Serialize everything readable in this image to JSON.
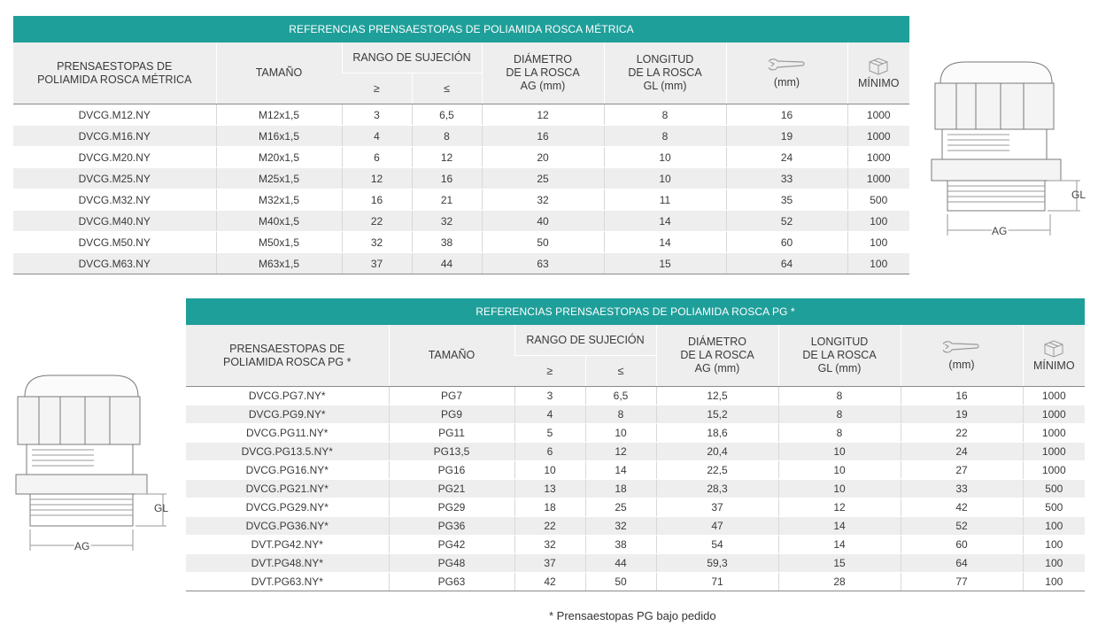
{
  "metric": {
    "title": "REFERENCIAS PRENSAESTOPAS DE POLIAMIDA ROSCA MÉTRICA",
    "headers": {
      "ref": "PRENSAESTOPAS DE POLIAMIDA ROSCA MÉTRICA",
      "size": "TAMAÑO",
      "range": "RANGO DE SUJECIÓN",
      "ge": "≥",
      "le": "≤",
      "diam": "DIÁMETRO DE LA ROSCA AG (mm)",
      "length": "LONGITUD DE LA ROSCA GL (mm)",
      "wrench": "(mm)",
      "min": "MÍNIMO"
    },
    "rows": [
      [
        "DVCG.M12.NY",
        "M12x1,5",
        "3",
        "6,5",
        "12",
        "8",
        "16",
        "1000"
      ],
      [
        "DVCG.M16.NY",
        "M16x1,5",
        "4",
        "8",
        "16",
        "8",
        "19",
        "1000"
      ],
      [
        "DVCG.M20.NY",
        "M20x1,5",
        "6",
        "12",
        "20",
        "10",
        "24",
        "1000"
      ],
      [
        "DVCG.M25.NY",
        "M25x1,5",
        "12",
        "16",
        "25",
        "10",
        "33",
        "1000"
      ],
      [
        "DVCG.M32.NY",
        "M32x1,5",
        "16",
        "21",
        "32",
        "11",
        "35",
        "500"
      ],
      [
        "DVCG.M40.NY",
        "M40x1,5",
        "22",
        "32",
        "40",
        "14",
        "52",
        "100"
      ],
      [
        "DVCG.M50.NY",
        "M50x1,5",
        "32",
        "38",
        "50",
        "14",
        "60",
        "100"
      ],
      [
        "DVCG.M63.NY",
        "M63x1,5",
        "37",
        "44",
        "63",
        "15",
        "64",
        "100"
      ]
    ]
  },
  "pg": {
    "title": "REFERENCIAS PRENSAESTOPAS DE POLIAMIDA ROSCA PG *",
    "headers": {
      "ref": "PRENSAESTOPAS DE POLIAMIDA ROSCA PG *",
      "size": "TAMAÑO",
      "range": "RANGO DE SUJECIÓN",
      "ge": "≥",
      "le": "≤",
      "diam": "DIÁMETRO DE LA ROSCA AG (mm)",
      "length": "LONGITUD DE LA ROSCA GL (mm)",
      "wrench": "(mm)",
      "min": "MÍNIMO"
    },
    "rows": [
      [
        "DVCG.PG7.NY*",
        "PG7",
        "3",
        "6,5",
        "12,5",
        "8",
        "16",
        "1000"
      ],
      [
        "DVCG.PG9.NY*",
        "PG9",
        "4",
        "8",
        "15,2",
        "8",
        "19",
        "1000"
      ],
      [
        "DVCG.PG11.NY*",
        "PG11",
        "5",
        "10",
        "18,6",
        "8",
        "22",
        "1000"
      ],
      [
        "DVCG.PG13.5.NY*",
        "PG13,5",
        "6",
        "12",
        "20,4",
        "10",
        "24",
        "1000"
      ],
      [
        "DVCG.PG16.NY*",
        "PG16",
        "10",
        "14",
        "22,5",
        "10",
        "27",
        "1000"
      ],
      [
        "DVCG.PG21.NY*",
        "PG21",
        "13",
        "18",
        "28,3",
        "10",
        "33",
        "500"
      ],
      [
        "DVCG.PG29.NY*",
        "PG29",
        "18",
        "25",
        "37",
        "12",
        "42",
        "500"
      ],
      [
        "DVCG.PG36.NY*",
        "PG36",
        "22",
        "32",
        "47",
        "14",
        "52",
        "100"
      ],
      [
        "DVT.PG42.NY*",
        "PG42",
        "32",
        "38",
        "54",
        "14",
        "60",
        "100"
      ],
      [
        "DVT.PG48.NY*",
        "PG48",
        "37",
        "44",
        "59,3",
        "15",
        "64",
        "100"
      ],
      [
        "DVT.PG63.NY*",
        "PG63",
        "42",
        "50",
        "71",
        "28",
        "77",
        "100"
      ]
    ]
  },
  "drawing": {
    "gl_label": "GL",
    "ag_label": "AG"
  },
  "footnote": "* Prensaestopas PG bajo pedido",
  "colors": {
    "accent": "#1f9f9a",
    "header_bg": "#eeeeee"
  },
  "icons": [
    "wrench-icon",
    "box-icon"
  ]
}
